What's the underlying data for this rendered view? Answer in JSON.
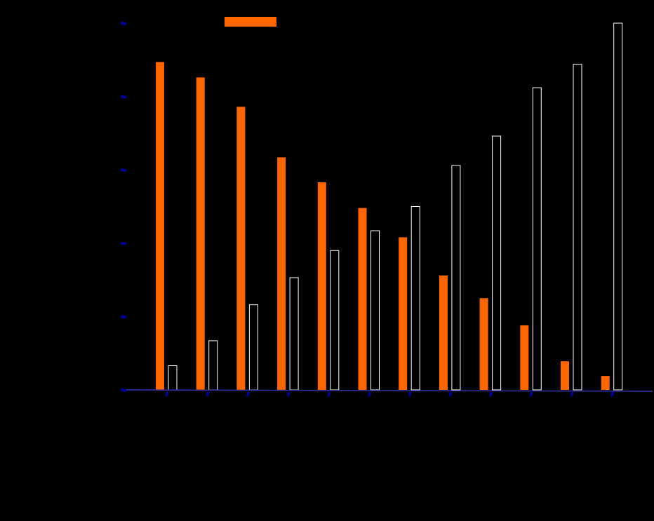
{
  "chart_data": {
    "type": "bar",
    "title": "",
    "xlabel": "",
    "ylabel": "",
    "categories": [
      "1",
      "2",
      "3",
      "4",
      "5",
      "6",
      "7",
      "8",
      "9",
      "10",
      "11",
      "12"
    ],
    "ylim": [
      0,
      5
    ],
    "ytick_count": 6,
    "grid": false,
    "legend": "top",
    "series": [
      {
        "color": "#ff6600",
        "fill": "solid",
        "values": [
          4.47,
          4.26,
          3.86,
          3.17,
          2.83,
          2.48,
          2.08,
          1.56,
          1.25,
          0.88,
          0.39,
          0.19
        ]
      },
      {
        "color": "#ffffff",
        "fill": "outline",
        "values": [
          0.33,
          0.67,
          1.16,
          1.53,
          1.9,
          2.17,
          2.5,
          3.06,
          3.46,
          4.12,
          4.44,
          5.0
        ]
      }
    ],
    "axis_color": "#000099"
  }
}
